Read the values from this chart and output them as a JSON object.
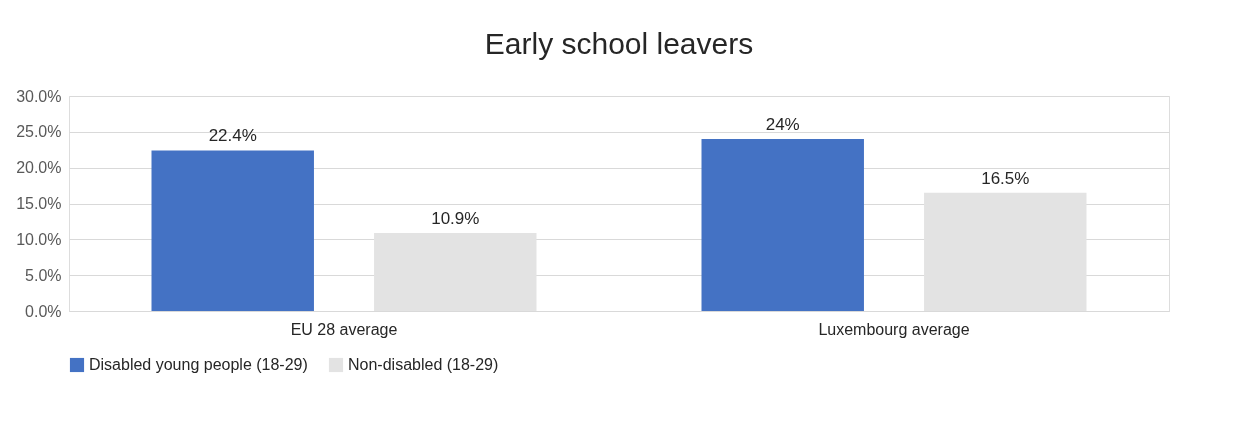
{
  "chart_data": {
    "type": "bar",
    "title": "Early school leavers",
    "categories": [
      "EU 28 average",
      "Luxembourg average"
    ],
    "series": [
      {
        "name": "Disabled young people (18-29)",
        "color": "#4472c4",
        "values": [
          22.4,
          24
        ],
        "value_labels": [
          "22.4%",
          "24%"
        ]
      },
      {
        "name": "Non-disabled (18-29)",
        "color": "#e3e3e3",
        "values": [
          10.9,
          16.5
        ],
        "value_labels": [
          "10.9%",
          "16.5%"
        ]
      }
    ],
    "ylim": [
      0,
      30
    ],
    "yticks": [
      {
        "value": 0,
        "label": "0.0%"
      },
      {
        "value": 5,
        "label": "5.0%"
      },
      {
        "value": 10,
        "label": "10.0%"
      },
      {
        "value": 15,
        "label": "15.0%"
      },
      {
        "value": 20,
        "label": "20.0%"
      },
      {
        "value": 25,
        "label": "25.0%"
      },
      {
        "value": 30,
        "label": "30.0%"
      }
    ],
    "grid": "y",
    "legend": "bottom"
  }
}
